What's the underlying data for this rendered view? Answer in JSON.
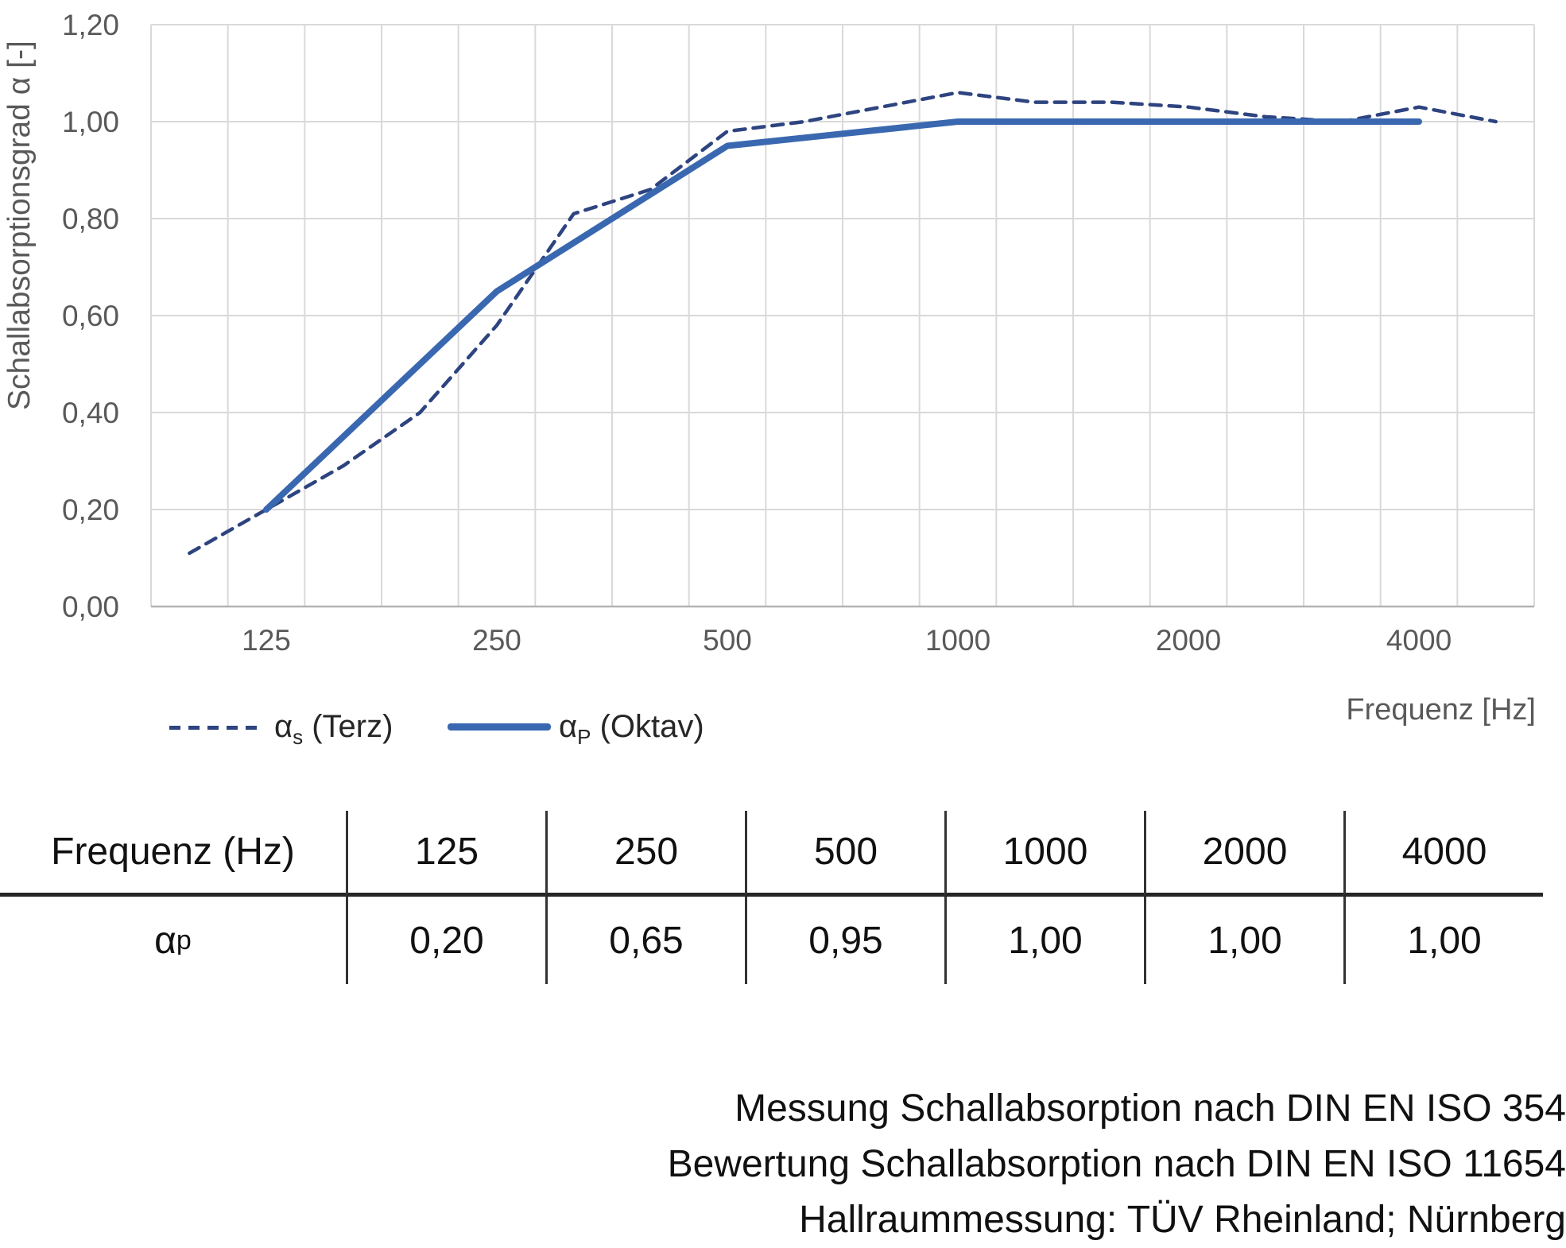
{
  "colors": {
    "solid_series": "#3A68B0",
    "dashed_series": "#2E4480",
    "gridline": "#D9D9D9",
    "axis_line": "#B3B3B3",
    "tick_text": "#595959",
    "table_text": "#111111",
    "footer_text": "#111111"
  },
  "chart_data": {
    "type": "line",
    "title": "",
    "xlabel": "Frequenz [Hz]",
    "ylabel": "Schallabsorptionsgrad α [-]",
    "ylim": [
      0,
      1.2
    ],
    "ytick_values": [
      0,
      0.2,
      0.4,
      0.6,
      0.8,
      1.0,
      1.2
    ],
    "ytick_labels": [
      "0,00",
      "0,20",
      "0,40",
      "0,60",
      "0,80",
      "1,00",
      "1,20"
    ],
    "grid": true,
    "legend_position": "bottom-left",
    "categories": [
      100,
      125,
      160,
      200,
      250,
      315,
      400,
      500,
      630,
      800,
      1000,
      1250,
      1600,
      2000,
      2500,
      3150,
      4000,
      5000
    ],
    "xticks": [
      {
        "index": 1,
        "label": "125"
      },
      {
        "index": 4,
        "label": "250"
      },
      {
        "index": 7,
        "label": "500"
      },
      {
        "index": 10,
        "label": "1000"
      },
      {
        "index": 13,
        "label": "2000"
      },
      {
        "index": 16,
        "label": "4000"
      }
    ],
    "series": [
      {
        "name": "αs (Terz)",
        "style": "dashed",
        "color_key": "dashed_series",
        "x": [
          100,
          125,
          160,
          200,
          250,
          315,
          400,
          500,
          630,
          800,
          1000,
          1250,
          1600,
          2000,
          2500,
          3150,
          4000,
          5000
        ],
        "values": [
          0.11,
          0.2,
          0.29,
          0.4,
          0.58,
          0.81,
          0.86,
          0.98,
          1.0,
          1.03,
          1.06,
          1.04,
          1.04,
          1.03,
          1.01,
          1.0,
          1.03,
          1.0
        ]
      },
      {
        "name": "αP (Oktav)",
        "style": "solid",
        "color_key": "solid_series",
        "x": [
          125,
          250,
          500,
          1000,
          2000,
          4000
        ],
        "values": [
          0.2,
          0.65,
          0.95,
          1.0,
          1.0,
          1.0
        ]
      }
    ]
  },
  "legend": {
    "items": [
      {
        "symbol": "α",
        "sub": "s",
        "rest": " (Terz)"
      },
      {
        "symbol": "α",
        "sub": "P",
        "rest": " (Oktav)"
      }
    ]
  },
  "table": {
    "header_label": "Frequenz (Hz)",
    "frequencies": [
      "125",
      "250",
      "500",
      "1000",
      "2000",
      "4000"
    ],
    "row_symbol": {
      "symbol": "α",
      "sub": "p"
    },
    "values": [
      "0,20",
      "0,65",
      "0,95",
      "1,00",
      "1,00",
      "1,00"
    ]
  },
  "footer": {
    "lines": [
      "Messung Schallabsorption nach DIN EN ISO 354",
      "Bewertung Schallabsorption nach DIN EN ISO 11654",
      "Hallraummessung: TÜV Rheinland; Nürnberg"
    ]
  }
}
